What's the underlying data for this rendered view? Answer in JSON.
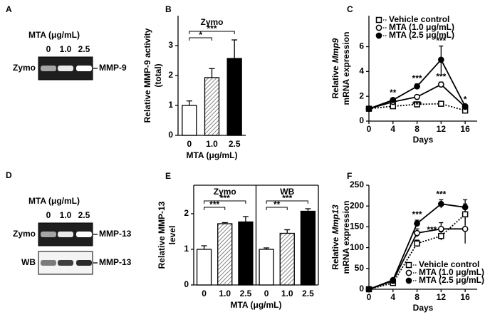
{
  "blots": [
    {
      "label": "A",
      "header": "MTA  (μg/mL)",
      "lanes": [
        "0",
        "1.0",
        "2.5"
      ],
      "rows": [
        {
          "left": "Zymo",
          "right": "MMP-9"
        }
      ]
    },
    {
      "label": "D",
      "header": "MTA  (μg/mL)",
      "lanes": [
        "0",
        "1.0",
        "2.5"
      ],
      "rows": [
        {
          "left": "Zymo",
          "right": "MMP-13"
        },
        {
          "left": "WB",
          "right": "MMP-13"
        }
      ]
    }
  ],
  "chart_data": [
    {
      "type": "bar",
      "label": "B",
      "ylabel": [
        [
          {
            "text": "Relative MMP-9 activity"
          }
        ],
        [
          {
            "text": "(total)"
          }
        ]
      ],
      "xlabel": "MTA (μg/mL)",
      "ylim": [
        0,
        4
      ],
      "yticks": [
        0,
        1,
        2,
        3
      ],
      "frame": false,
      "colors": [
        "#ffffff",
        "#666666",
        "#000000"
      ],
      "hatched": [
        false,
        true,
        false
      ],
      "groups": [
        {
          "name": "Zymo",
          "categories": [
            "0",
            "1.0",
            "2.5"
          ],
          "values": [
            1.0,
            1.93,
            2.57
          ],
          "errors": [
            0.15,
            0.3,
            0.62
          ],
          "brackets": [
            {
              "from": 0,
              "to": 1,
              "text": "*"
            },
            {
              "from": 0,
              "to": 2,
              "text": "***"
            }
          ]
        }
      ]
    },
    {
      "type": "line",
      "label": "C",
      "ylabel": [
        [
          {
            "text": "Relative"
          },
          {
            "text": "Mmp9",
            "italic": true
          }
        ],
        [
          {
            "text": "mRNA expression"
          }
        ]
      ],
      "xlabel": "Days",
      "x": [
        0,
        4,
        8,
        12,
        16
      ],
      "xlim": [
        0,
        18
      ],
      "xticks": [
        0,
        4,
        8,
        12,
        16
      ],
      "ylim": [
        0,
        8.5
      ],
      "yticks": [
        0,
        2,
        4,
        6
      ],
      "legend": "top-left",
      "series": [
        {
          "name": "Vehicle control",
          "color": "#000000",
          "marker": "square",
          "filled": false,
          "dashed": true,
          "values": [
            1,
            1.2,
            1.35,
            1.4,
            0.85
          ],
          "errors": [
            0,
            0.1,
            0.1,
            0.1,
            0.1
          ]
        },
        {
          "name": "MTA (1.0 μg/mL)",
          "color": "#000000",
          "marker": "circle",
          "filled": false,
          "dashed": false,
          "values": [
            1,
            1.55,
            1.95,
            2.95,
            1.15
          ],
          "errors": [
            0,
            0.1,
            0.15,
            0.2,
            0.1
          ]
        },
        {
          "name": "MTA (2.5 μg/mL)",
          "color": "#000000",
          "marker": "circle",
          "filled": true,
          "dashed": false,
          "values": [
            1,
            1.7,
            2.8,
            4.95,
            1.2
          ],
          "errors": [
            0,
            0.15,
            0.2,
            1.1,
            0.1
          ]
        }
      ],
      "annotations": [
        {
          "text": "**",
          "series": 2,
          "index": 1,
          "position": "above"
        },
        {
          "text": "***",
          "series": 2,
          "index": 2,
          "position": "above"
        },
        {
          "text": "***",
          "series": 1,
          "index": 2,
          "position": "below"
        },
        {
          "text": "***",
          "series": 2,
          "index": 3,
          "position": "above"
        },
        {
          "text": "***",
          "series": 1,
          "index": 3,
          "position": "above"
        },
        {
          "text": "*",
          "series": 2,
          "index": 4,
          "position": "above"
        }
      ]
    },
    {
      "type": "bar",
      "label": "E",
      "ylabel": [
        [
          {
            "text": "Relative MMP-13"
          }
        ],
        [
          {
            "text": "level"
          }
        ]
      ],
      "xlabel": "MTA (μg/mL)",
      "ylim": [
        0,
        2.8
      ],
      "yticks": [
        0,
        1,
        2
      ],
      "frame": true,
      "colors": [
        "#ffffff",
        "#666666",
        "#000000"
      ],
      "hatched": [
        false,
        true,
        false
      ],
      "groups": [
        {
          "name": "Zymo",
          "categories": [
            "0",
            "1.0",
            "2.5"
          ],
          "values": [
            1.0,
            1.72,
            1.77
          ],
          "errors": [
            0.1,
            0.03,
            0.15
          ],
          "brackets": [
            {
              "from": 0,
              "to": 1,
              "text": "***"
            },
            {
              "from": 0,
              "to": 2,
              "text": "***"
            }
          ]
        },
        {
          "name": "WB",
          "categories": [
            "0",
            "1.0",
            "2.5"
          ],
          "values": [
            1.0,
            1.45,
            2.07
          ],
          "errors": [
            0.04,
            0.1,
            0.07
          ],
          "brackets": [
            {
              "from": 0,
              "to": 1,
              "text": "**"
            },
            {
              "from": 0,
              "to": 2,
              "text": "***"
            }
          ]
        }
      ]
    },
    {
      "type": "line",
      "label": "F",
      "ylabel": [
        [
          {
            "text": "Relative"
          },
          {
            "text": "Mmp13",
            "italic": true
          }
        ],
        [
          {
            "text": "mRNA expression"
          }
        ]
      ],
      "xlabel": "Days",
      "x": [
        0,
        4,
        8,
        12,
        16
      ],
      "xlim": [
        0,
        18
      ],
      "xticks": [
        0,
        4,
        8,
        12,
        16
      ],
      "ylim": [
        0,
        250
      ],
      "yticks": [
        0,
        50,
        100,
        150,
        200,
        250
      ],
      "legend": "bottom-right",
      "series": [
        {
          "name": "Vehicle control",
          "color": "#000000",
          "marker": "square",
          "filled": false,
          "dashed": true,
          "values": [
            0,
            15,
            110,
            128,
            180
          ],
          "errors": [
            0,
            3,
            8,
            10,
            25
          ]
        },
        {
          "name": "MTA (1.0 μg/mL)",
          "color": "#000000",
          "marker": "circle",
          "filled": false,
          "dashed": false,
          "values": [
            0,
            20,
            135,
            145,
            145
          ],
          "errors": [
            0,
            3,
            10,
            15,
            35
          ]
        },
        {
          "name": "MTA (2.5 μg/mL)",
          "color": "#000000",
          "marker": "circle",
          "filled": true,
          "dashed": false,
          "values": [
            0,
            22,
            158,
            205,
            197
          ],
          "errors": [
            0,
            3,
            8,
            10,
            18
          ]
        }
      ],
      "annotations": [
        {
          "text": "***",
          "series": 2,
          "index": 2,
          "position": "above"
        },
        {
          "text": "***",
          "series": 2,
          "index": 3,
          "position": "above"
        },
        {
          "text": "***",
          "series": 1,
          "index": 3,
          "position": "left"
        }
      ]
    }
  ]
}
